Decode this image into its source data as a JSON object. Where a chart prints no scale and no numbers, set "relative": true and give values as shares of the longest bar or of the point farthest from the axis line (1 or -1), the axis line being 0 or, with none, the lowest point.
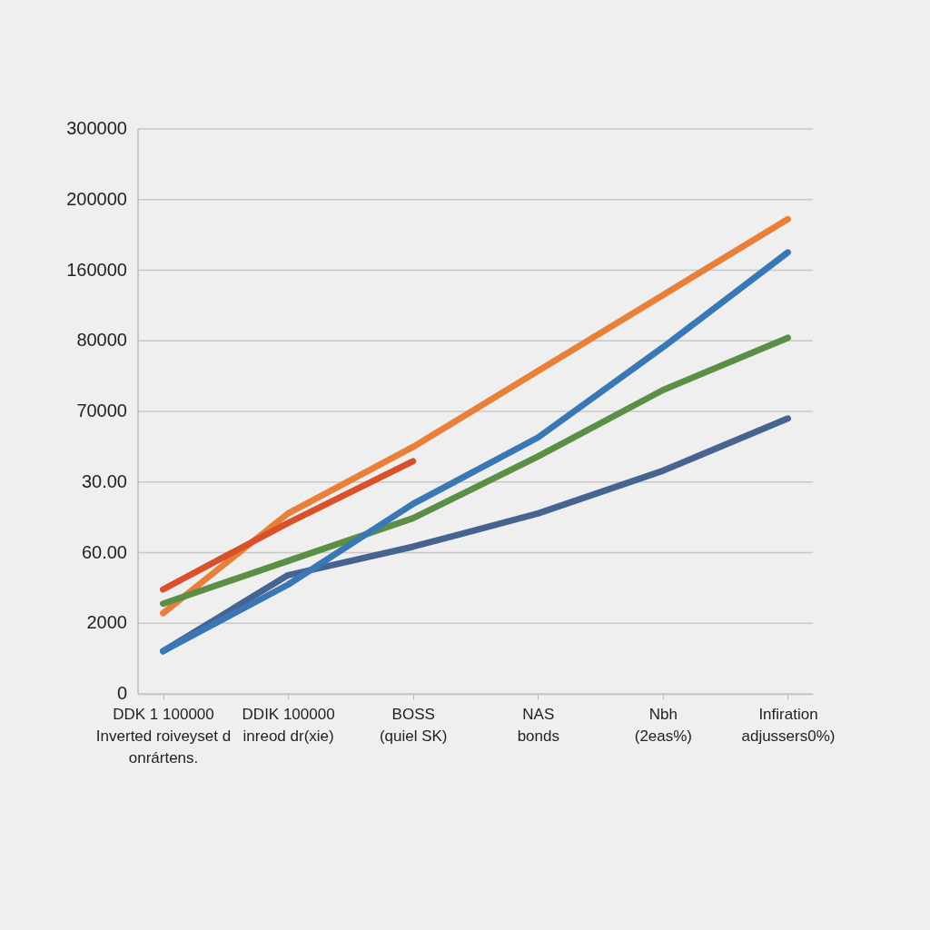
{
  "chart_data": {
    "type": "line",
    "relative": true,
    "categories": [
      "DDK 1 100000\nInverted roiveyset d\nonrártens.",
      "DDIK 100000\ninreod dr(xie)",
      "BOSS\n(quiel SK)",
      "NAS\nbonds",
      "Nbh\n(2eas%)",
      "Infiration\nadjussers0%)"
    ],
    "annotations": [
      "300000",
      "200000",
      "160000",
      "80000",
      "70000",
      "30.00",
      "60.00",
      "2000",
      "0"
    ],
    "grid": "y",
    "series": [
      {
        "color": "#e8803a",
        "values": [
          0.17,
          0.38,
          0.52,
          0.68,
          0.84,
          1
        ]
      },
      {
        "color": "#d9502a",
        "values": [
          0.22,
          0.36,
          0.49,
          null,
          null,
          null
        ]
      },
      {
        "color": "#5b8f46",
        "values": [
          0.19,
          0.28,
          0.37,
          0.5,
          0.64,
          0.75
        ]
      },
      {
        "color": "#46648f",
        "values": [
          0.09,
          0.25,
          0.31,
          0.38,
          0.47,
          0.58
        ]
      },
      {
        "color": "#3a78b5",
        "values": [
          0.09,
          0.23,
          0.4,
          0.54,
          0.73,
          0.93
        ]
      }
    ]
  }
}
